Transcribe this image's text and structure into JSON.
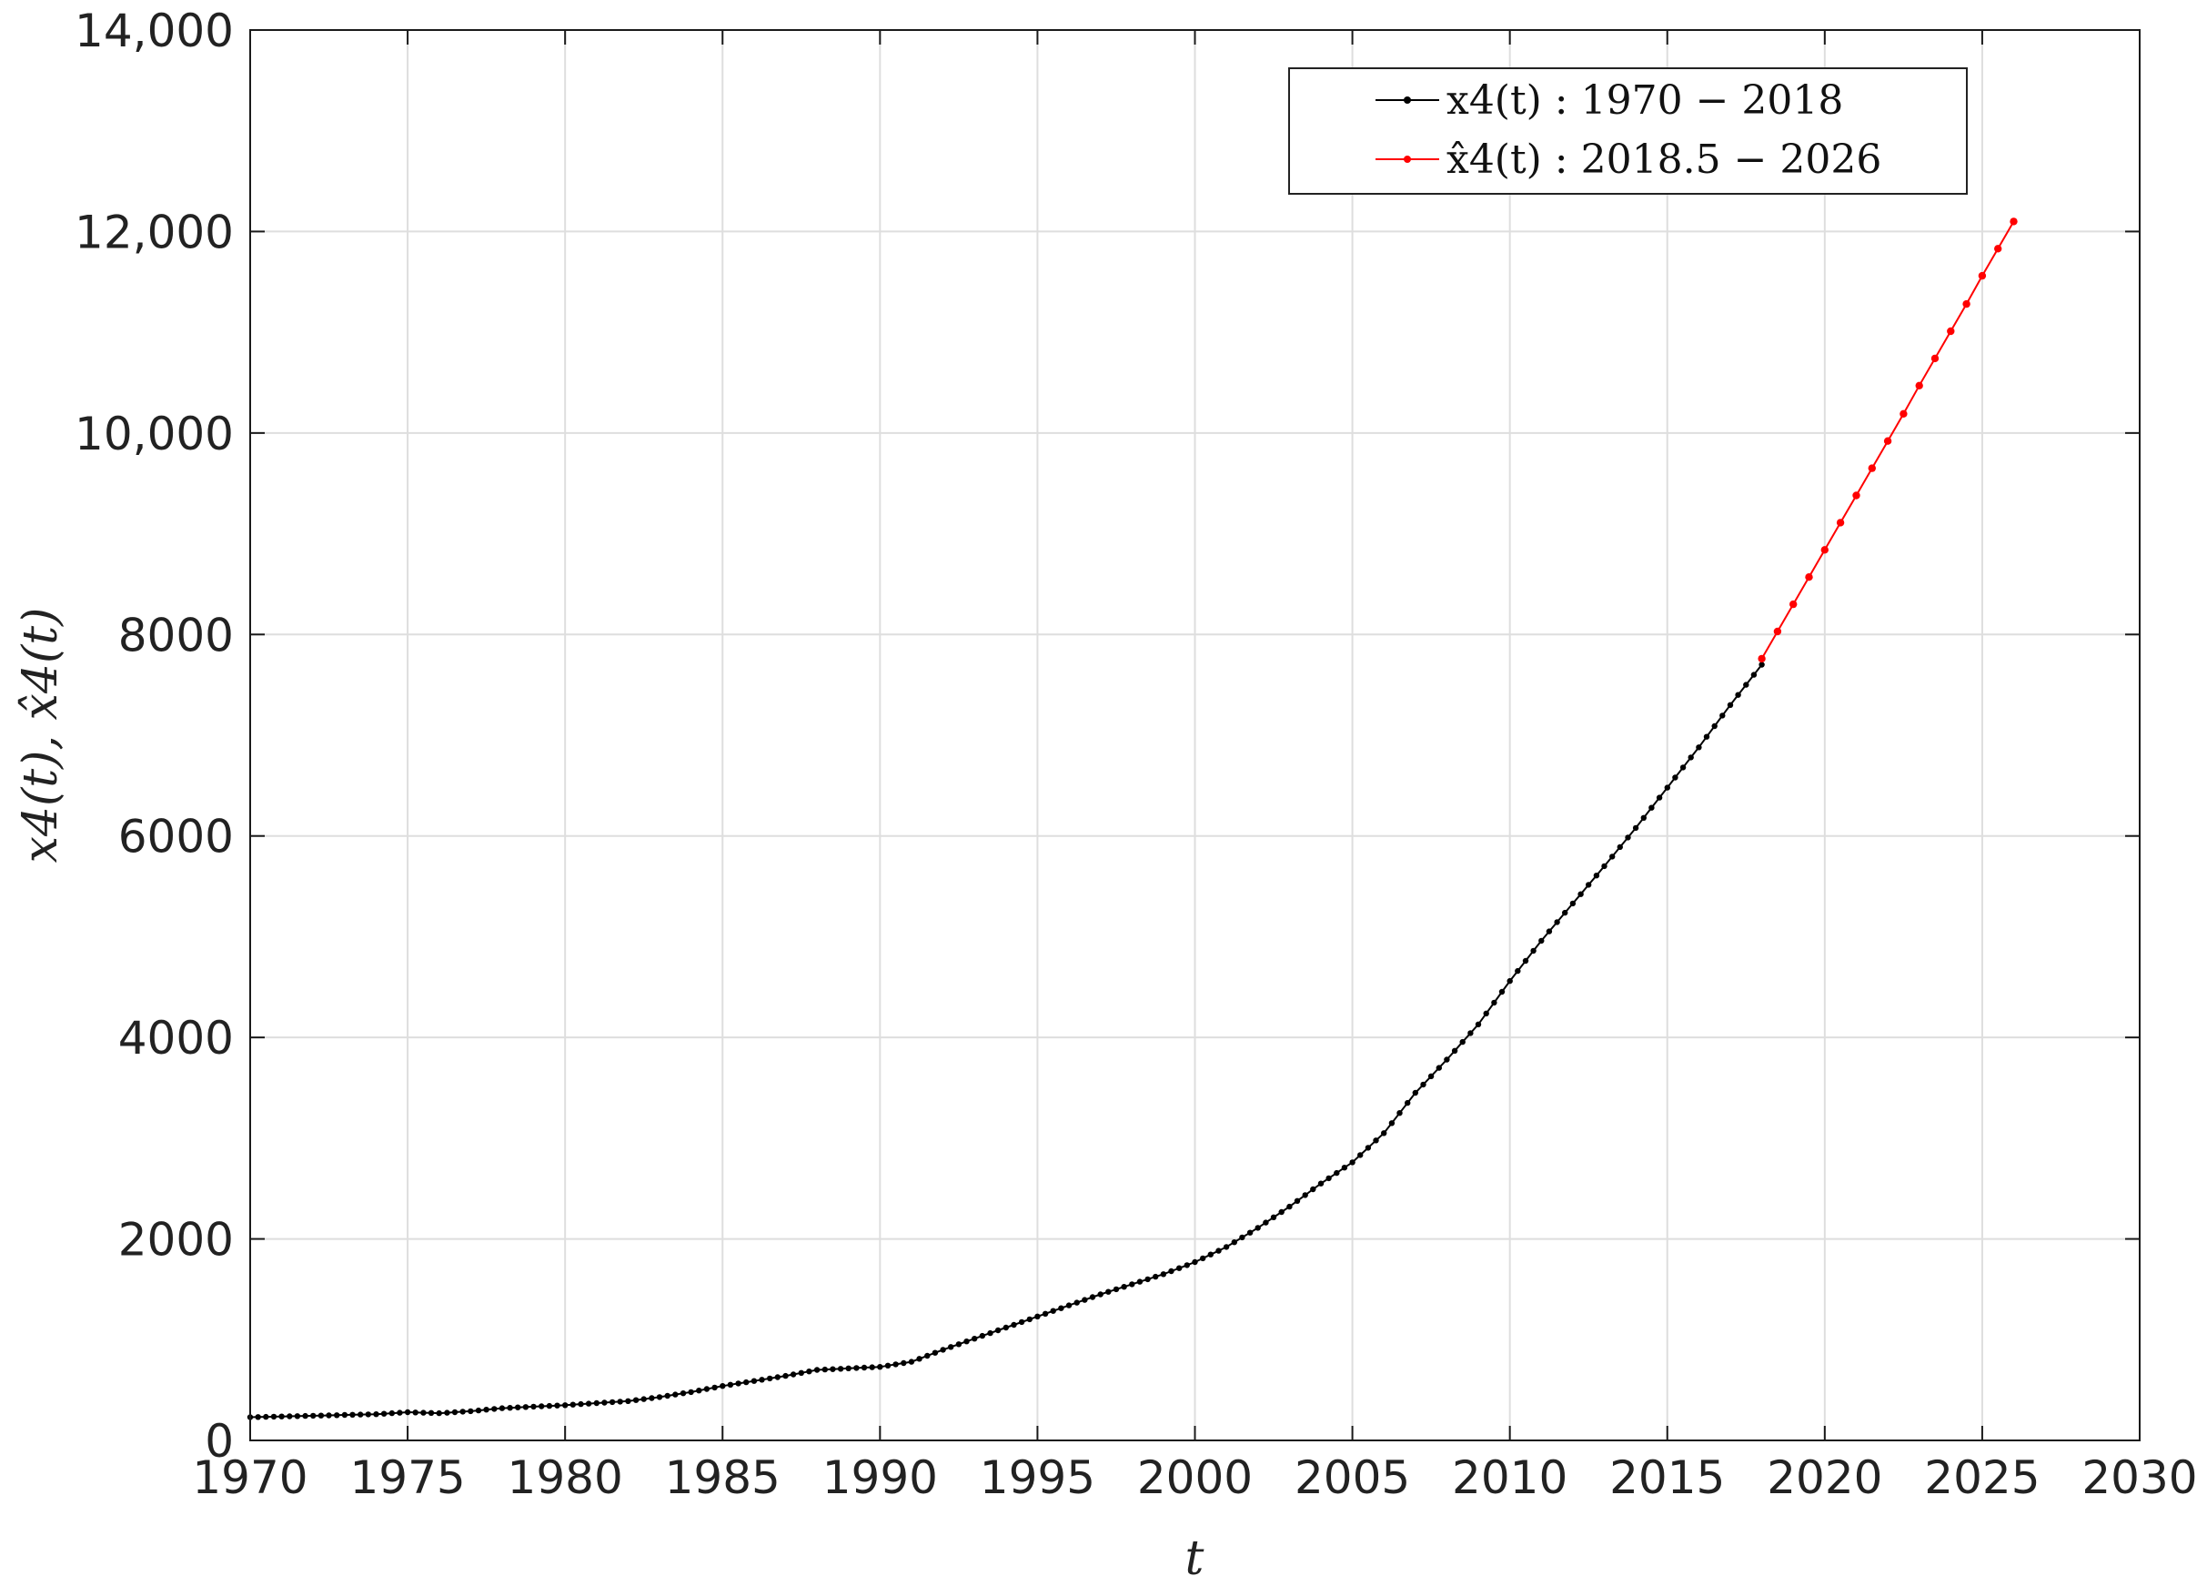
{
  "chart_data": {
    "type": "line",
    "xlabel": "t",
    "ylabel": "x4(t), x̂4(t)",
    "xlim": [
      1970,
      2030
    ],
    "ylim": [
      0,
      14000
    ],
    "grid": true,
    "legend_position": "top-right",
    "x_ticks": [
      1970,
      1975,
      1980,
      1985,
      1990,
      1995,
      2000,
      2005,
      2010,
      2015,
      2020,
      2025,
      2030
    ],
    "x_tick_labels": [
      "1970",
      "1975",
      "1980",
      "1985",
      "1990",
      "1995",
      "2000",
      "2005",
      "2010",
      "2015",
      "2020",
      "2025",
      "2030"
    ],
    "y_ticks": [
      0,
      2000,
      4000,
      6000,
      8000,
      10000,
      12000,
      14000
    ],
    "y_tick_labels": [
      "0",
      "2000",
      "4000",
      "6000",
      "8000",
      "10,000",
      "12,000",
      "14,000"
    ],
    "series": [
      {
        "name": "x4(t) : 1970 − 2018",
        "color": "#000000",
        "marker": "dot",
        "anchors": [
          [
            1970,
            230
          ],
          [
            1972,
            245
          ],
          [
            1974,
            260
          ],
          [
            1975,
            280
          ],
          [
            1976,
            270
          ],
          [
            1977,
            290
          ],
          [
            1978,
            320
          ],
          [
            1980,
            350
          ],
          [
            1982,
            390
          ],
          [
            1983,
            430
          ],
          [
            1984,
            480
          ],
          [
            1985,
            540
          ],
          [
            1986,
            590
          ],
          [
            1987,
            640
          ],
          [
            1988,
            700
          ],
          [
            1989,
            715
          ],
          [
            1990,
            730
          ],
          [
            1991,
            780
          ],
          [
            1992,
            900
          ],
          [
            1993,
            1010
          ],
          [
            1994,
            1120
          ],
          [
            1995,
            1230
          ],
          [
            1996,
            1340
          ],
          [
            1997,
            1450
          ],
          [
            1998,
            1550
          ],
          [
            1999,
            1650
          ],
          [
            2000,
            1770
          ],
          [
            2001,
            1920
          ],
          [
            2002,
            2110
          ],
          [
            2003,
            2320
          ],
          [
            2004,
            2550
          ],
          [
            2005,
            2760
          ],
          [
            2006,
            3050
          ],
          [
            2007,
            3450
          ],
          [
            2008,
            3780
          ],
          [
            2009,
            4130
          ],
          [
            2010,
            4560
          ],
          [
            2011,
            4960
          ],
          [
            2012,
            5330
          ],
          [
            2013,
            5700
          ],
          [
            2014,
            6080
          ],
          [
            2015,
            6480
          ],
          [
            2016,
            6880
          ],
          [
            2017,
            7300
          ],
          [
            2018,
            7700
          ]
        ]
      },
      {
        "name": "x̂4(t) : 2018.5 − 2026",
        "color": "#ff0000",
        "marker": "dot",
        "points": [
          [
            2018,
            7760
          ],
          [
            2018.5,
            8030
          ],
          [
            2019,
            8300
          ],
          [
            2019.5,
            8570
          ],
          [
            2020,
            8840
          ],
          [
            2020.5,
            9110
          ],
          [
            2021,
            9380
          ],
          [
            2021.5,
            9650
          ],
          [
            2022,
            9920
          ],
          [
            2022.5,
            10190
          ],
          [
            2023,
            10470
          ],
          [
            2023.5,
            10740
          ],
          [
            2024,
            11010
          ],
          [
            2024.5,
            11280
          ],
          [
            2025,
            11560
          ],
          [
            2025.5,
            11830
          ],
          [
            2026,
            12100
          ]
        ]
      }
    ]
  }
}
